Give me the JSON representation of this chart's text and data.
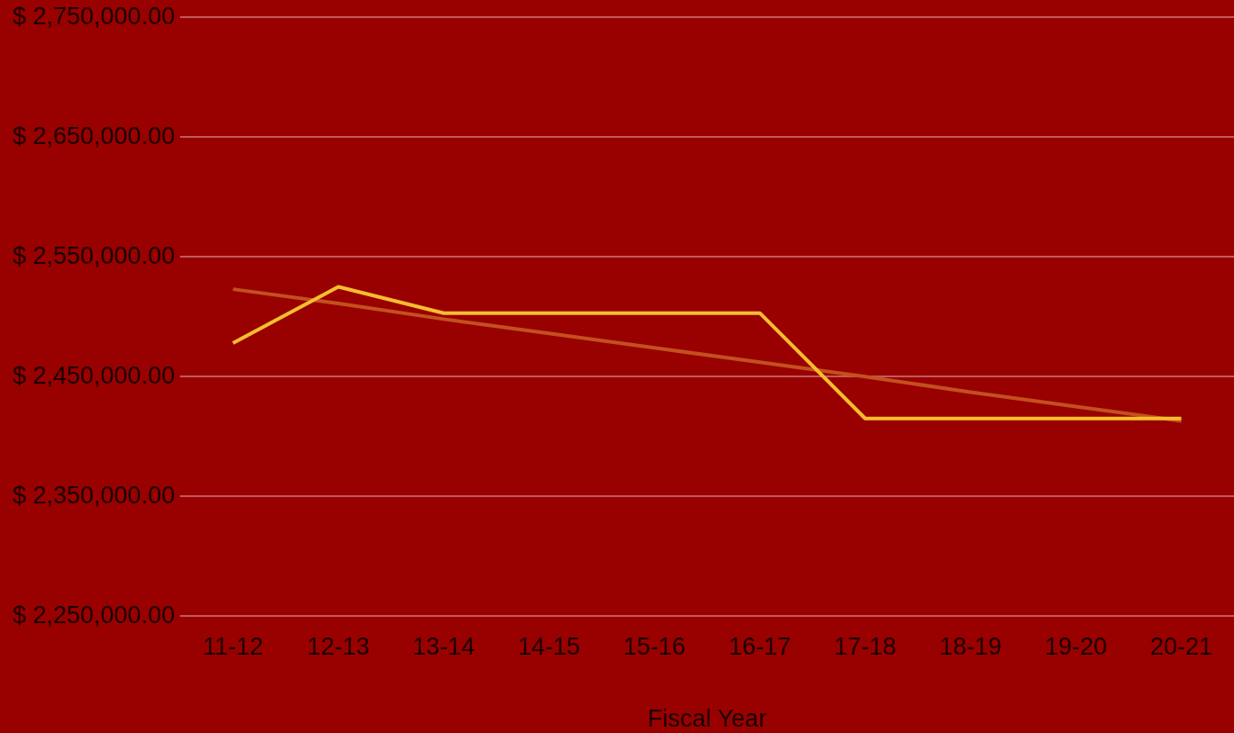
{
  "chart_data": {
    "type": "line",
    "xlabel": "Fiscal Year",
    "categories": [
      "11-12",
      "12-13",
      "13-14",
      "14-15",
      "15-16",
      "16-17",
      "17-18",
      "18-19",
      "19-20",
      "20-21"
    ],
    "series": [
      {
        "color": "#f5bd2f",
        "values": [
          2478000,
          2525000,
          2503000,
          2503000,
          2503000,
          2503000,
          2415000,
          2415000,
          2415000,
          2415000
        ]
      },
      {
        "type": "line",
        "color": "#c4501e",
        "values": [
          2523000,
          2511000,
          2498000,
          2486000,
          2474000,
          2462000,
          2450000,
          2437000,
          2425000,
          2413000
        ]
      }
    ],
    "ylim": [
      2250000,
      2750000
    ],
    "yticks": [
      {
        "value": 2250000,
        "label": "$ 2,250,000.00"
      },
      {
        "value": 2350000,
        "label": "$ 2,350,000.00"
      },
      {
        "value": 2450000,
        "label": "$ 2,450,000.00"
      },
      {
        "value": 2550000,
        "label": "$ 2,550,000.00"
      },
      {
        "value": 2650000,
        "label": "$ 2,650,000.00"
      },
      {
        "value": 2750000,
        "label": "$ 2,750,000.00"
      }
    ],
    "grid": "y",
    "legend": false,
    "marker": "none",
    "line_style": "solid"
  }
}
